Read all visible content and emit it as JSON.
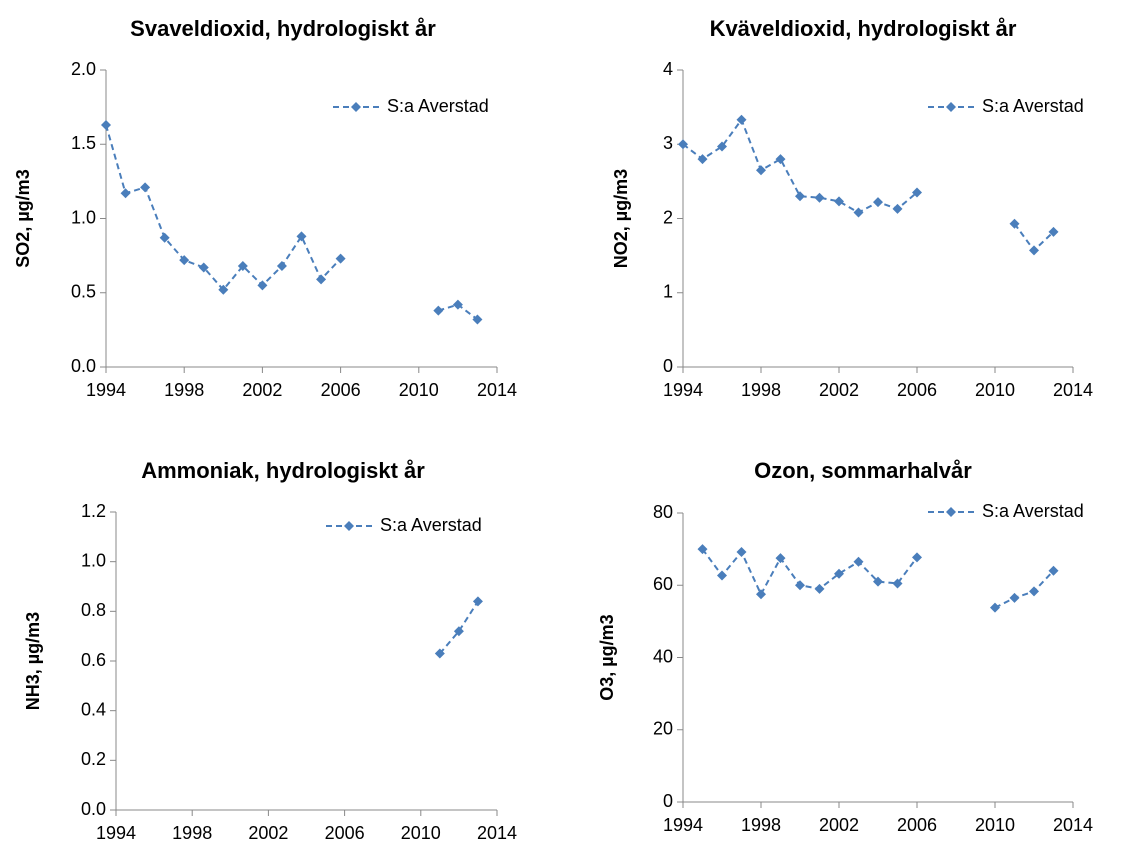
{
  "chart_data": [
    {
      "type": "line",
      "title": "Svaveldioxid, hydrologiskt år",
      "y_label": "SO2, µg/m3",
      "x": [
        1994,
        1995,
        1996,
        1997,
        1998,
        1999,
        2000,
        2001,
        2002,
        2003,
        2004,
        2005,
        2006,
        2007,
        2008,
        2009,
        2010,
        2011,
        2012,
        2013
      ],
      "series": [
        {
          "name": "S:a Averstad",
          "color": "#4a7ebb",
          "values": [
            1.63,
            1.17,
            1.21,
            0.87,
            0.72,
            0.67,
            0.52,
            0.68,
            0.55,
            0.68,
            0.88,
            0.59,
            0.73,
            null,
            null,
            null,
            null,
            0.38,
            0.42,
            0.32
          ]
        }
      ],
      "xlim": [
        1994,
        2014
      ],
      "xticks": [
        1994,
        1998,
        2002,
        2006,
        2010,
        2014
      ],
      "ylim": [
        0,
        2
      ],
      "yticks": [
        {
          "value": 0,
          "label": "0.0"
        },
        {
          "value": 0.5,
          "label": "0.5"
        },
        {
          "value": 1,
          "label": "1.0"
        },
        {
          "value": 1.5,
          "label": "1.5"
        },
        {
          "value": 2,
          "label": "2.0"
        }
      ]
    },
    {
      "type": "line",
      "title": "Kväveldioxid, hydrologiskt år",
      "y_label": "NO2, µg/m3",
      "x": [
        1994,
        1995,
        1996,
        1997,
        1998,
        1999,
        2000,
        2001,
        2002,
        2003,
        2004,
        2005,
        2006,
        2007,
        2008,
        2009,
        2010,
        2011,
        2012,
        2013
      ],
      "series": [
        {
          "name": "S:a Averstad",
          "color": "#4a7ebb",
          "values": [
            3.0,
            2.8,
            2.97,
            3.33,
            2.65,
            2.8,
            2.3,
            2.28,
            2.23,
            2.08,
            2.22,
            2.13,
            2.35,
            null,
            null,
            null,
            null,
            1.93,
            1.57,
            1.82
          ]
        }
      ],
      "xlim": [
        1994,
        2014
      ],
      "xticks": [
        1994,
        1998,
        2002,
        2006,
        2010,
        2014
      ],
      "ylim": [
        0,
        4
      ],
      "yticks": [
        0,
        1,
        2,
        3,
        4
      ]
    },
    {
      "type": "line",
      "title": "Ammoniak, hydrologiskt år",
      "y_label": "NH3, µg/m3",
      "x": [
        2011,
        2012,
        2013
      ],
      "series": [
        {
          "name": "S:a Averstad",
          "color": "#4a7ebb",
          "values": [
            0.63,
            0.72,
            0.84
          ]
        }
      ],
      "xlim": [
        1994,
        2014
      ],
      "xticks": [
        1994,
        1998,
        2002,
        2006,
        2010,
        2014
      ],
      "ylim": [
        0,
        1.2
      ],
      "yticks": [
        {
          "value": 0,
          "label": "0.0"
        },
        {
          "value": 0.2,
          "label": "0.2"
        },
        {
          "value": 0.4,
          "label": "0.4"
        },
        {
          "value": 0.6,
          "label": "0.6"
        },
        {
          "value": 0.8,
          "label": "0.8"
        },
        {
          "value": 1,
          "label": "1.0"
        },
        {
          "value": 1.2,
          "label": "1.2"
        }
      ]
    },
    {
      "type": "line",
      "title": "Ozon, sommarhalvår",
      "y_label": "O3, µg/m3",
      "x": [
        1995,
        1996,
        1997,
        1998,
        1999,
        2000,
        2001,
        2002,
        2003,
        2004,
        2005,
        2006,
        2007,
        2008,
        2009,
        2010,
        2011,
        2012,
        2013
      ],
      "series": [
        {
          "name": "S:a Averstad",
          "color": "#4a7ebb",
          "values": [
            70,
            62.7,
            69.2,
            57.5,
            67.5,
            60,
            59,
            63.2,
            66.5,
            61,
            60.5,
            67.7,
            null,
            null,
            null,
            53.8,
            56.5,
            58.3,
            64
          ]
        }
      ],
      "xlim": [
        1994,
        2014
      ],
      "xticks": [
        1994,
        1998,
        2002,
        2006,
        2010,
        2014
      ],
      "ylim": [
        0,
        80
      ],
      "yticks": [
        0,
        20,
        40,
        60,
        80
      ]
    }
  ]
}
